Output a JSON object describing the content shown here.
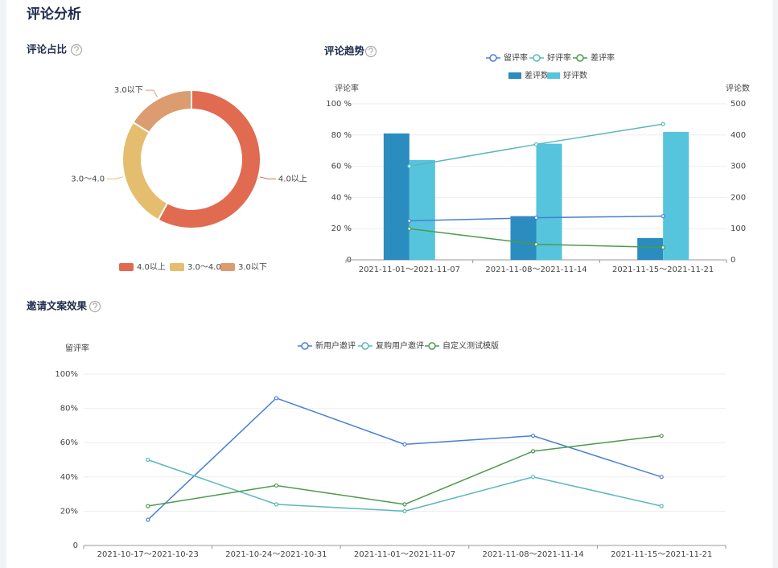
{
  "page": {
    "title": "评论分析"
  },
  "chart_data": [
    {
      "type": "pie",
      "title": "评论占比",
      "categories": [
        "4.0以上",
        "3.0～4.0",
        "3.0以下"
      ],
      "values": [
        58,
        26,
        16
      ],
      "colors": [
        "#e06b50",
        "#e5bd6e",
        "#dc9c6f"
      ]
    },
    {
      "type": "bar",
      "title": "评论趋势",
      "ylabel": "评论率",
      "y2label": "评论数",
      "categories": [
        "2021-11-01～2021-11-07",
        "2021-11-08～2021-11-14",
        "2021-11-15～2021-11-21"
      ],
      "series": [
        {
          "name": "留评率",
          "type": "line",
          "color": "#4a7fd4",
          "values": [
            25,
            27,
            28
          ]
        },
        {
          "name": "好评率",
          "type": "line",
          "color": "#5ab7be",
          "values": [
            60,
            74,
            87
          ]
        },
        {
          "name": "差评率",
          "type": "line",
          "color": "#4c9a4c",
          "values": [
            20,
            10,
            8
          ]
        },
        {
          "name": "差评数",
          "type": "bar",
          "axis": "y2",
          "color": "#2a8cbf",
          "values": [
            405,
            140,
            70
          ]
        },
        {
          "name": "好评数",
          "type": "bar",
          "axis": "y2",
          "color": "#56c4dc",
          "values": [
            320,
            372,
            410
          ]
        }
      ],
      "ylim": [
        0,
        100
      ],
      "yticks": [
        0,
        {
          "value": 20,
          "label": "20 %"
        },
        {
          "value": 40,
          "label": "40 %"
        },
        {
          "value": 60,
          "label": "60 %"
        },
        {
          "value": 80,
          "label": "80 %"
        },
        {
          "value": 100,
          "label": "100 %"
        }
      ],
      "y2lim": [
        0,
        500
      ],
      "y2ticks": [
        0,
        100,
        200,
        300,
        400,
        500
      ],
      "grid": true
    },
    {
      "type": "line",
      "title": "邀请文案效果",
      "ylabel": "留评率",
      "categories": [
        "2021-10-17～2021-10-23",
        "2021-10-24～2021-10-31",
        "2021-11-01～2021-11-07",
        "2021-11-08～2021-11-14",
        "2021-11-15～2021-11-21"
      ],
      "series": [
        {
          "name": "新用户邀评",
          "color": "#4a7fd4",
          "values": [
            15,
            86,
            59,
            64,
            40
          ]
        },
        {
          "name": "复购用户邀评",
          "color": "#5ab7be",
          "values": [
            50,
            24,
            20,
            40,
            23
          ]
        },
        {
          "name": "自定义测试模版",
          "color": "#4c9a4c",
          "values": [
            23,
            35,
            24,
            55,
            64
          ]
        }
      ],
      "ylim": [
        0,
        100
      ],
      "yticks": [
        0,
        {
          "value": 20,
          "label": "20%"
        },
        {
          "value": 40,
          "label": "40%"
        },
        {
          "value": 60,
          "label": "60%"
        },
        {
          "value": 80,
          "label": "80%"
        },
        {
          "value": 100,
          "label": "100%"
        }
      ],
      "grid": true
    }
  ]
}
